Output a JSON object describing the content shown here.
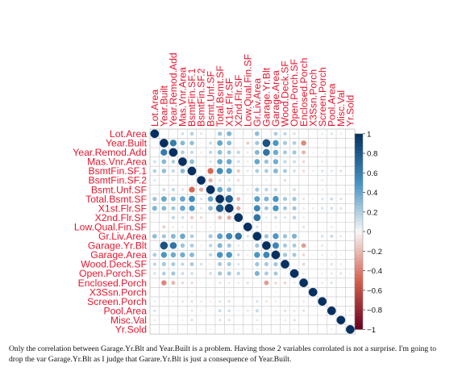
{
  "chart_data": {
    "type": "heatmap",
    "variables": [
      "Lot.Area",
      "Year.Built",
      "Year.Remod.Add",
      "Mas.Vnr.Area",
      "BsmtFin.SF.1",
      "BsmtFin.SF.2",
      "Bsmt.Unf.SF",
      "Total.Bsmt.SF",
      "X1st.Flr.SF",
      "X2nd.Flr.SF",
      "Low.Qual.Fin.SF",
      "Gr.Liv.Area",
      "Garage.Yr.Blt",
      "Garage.Area",
      "Wood.Deck.SF",
      "Open.Porch.SF",
      "Enclosed.Porch",
      "X3Ssn.Porch",
      "Screen.Porch",
      "Pool.Area",
      "Misc.Val",
      "Yr.Sold"
    ],
    "correlations": [
      [
        1.0,
        0.02,
        0.02,
        0.12,
        0.19,
        0.08,
        0.02,
        0.25,
        0.33,
        0.03,
        0.0,
        0.29,
        0.02,
        0.21,
        0.16,
        0.1,
        0.02,
        0.02,
        0.06,
        0.09,
        0.06,
        -0.02
      ],
      [
        0.02,
        1.0,
        0.61,
        0.31,
        0.28,
        -0.03,
        0.13,
        0.41,
        0.31,
        0.02,
        -0.14,
        0.24,
        0.83,
        0.48,
        0.23,
        0.2,
        -0.37,
        0.02,
        -0.04,
        0.0,
        0.0,
        -0.01
      ],
      [
        0.02,
        0.61,
        1.0,
        0.2,
        0.15,
        -0.06,
        0.16,
        0.3,
        0.24,
        0.16,
        -0.06,
        0.32,
        0.65,
        0.38,
        0.22,
        0.24,
        -0.22,
        0.04,
        -0.05,
        0.0,
        0.0,
        0.03
      ],
      [
        0.12,
        0.31,
        0.2,
        1.0,
        0.3,
        -0.02,
        0.09,
        0.4,
        0.39,
        0.12,
        -0.06,
        0.4,
        0.26,
        0.37,
        0.16,
        0.13,
        -0.11,
        0.01,
        0.07,
        0.0,
        0.04,
        -0.02
      ],
      [
        0.19,
        0.28,
        0.15,
        0.3,
        1.0,
        -0.05,
        -0.48,
        0.54,
        0.46,
        -0.16,
        -0.07,
        0.21,
        0.21,
        0.31,
        0.22,
        0.12,
        -0.1,
        0.05,
        0.09,
        0.08,
        0.09,
        0.02
      ],
      [
        0.08,
        -0.03,
        -0.06,
        -0.02,
        -0.05,
        1.0,
        -0.24,
        0.09,
        0.08,
        -0.1,
        0.0,
        -0.02,
        -0.05,
        0.0,
        0.1,
        0.0,
        0.03,
        -0.02,
        0.06,
        0.04,
        0.0,
        0.0
      ],
      [
        0.02,
        0.13,
        0.16,
        0.09,
        -0.48,
        -0.24,
        1.0,
        0.41,
        0.3,
        0.0,
        0.05,
        0.23,
        0.17,
        0.16,
        -0.04,
        0.12,
        0.0,
        0.02,
        -0.05,
        -0.03,
        -0.01,
        -0.04
      ],
      [
        0.25,
        0.41,
        0.3,
        0.4,
        0.54,
        0.09,
        0.41,
        1.0,
        0.8,
        -0.21,
        -0.03,
        0.44,
        0.33,
        0.49,
        0.23,
        0.24,
        -0.08,
        0.04,
        0.09,
        0.13,
        0.09,
        -0.01
      ],
      [
        0.33,
        0.31,
        0.24,
        0.39,
        0.46,
        0.08,
        0.3,
        0.8,
        1.0,
        -0.25,
        -0.01,
        0.56,
        0.24,
        0.49,
        0.23,
        0.24,
        -0.07,
        0.06,
        0.1,
        0.12,
        0.09,
        -0.01
      ],
      [
        0.03,
        0.02,
        0.16,
        0.12,
        -0.16,
        -0.1,
        0.0,
        -0.21,
        -0.25,
        1.0,
        0.02,
        0.66,
        0.07,
        0.13,
        0.09,
        0.18,
        0.06,
        -0.02,
        0.01,
        0.04,
        0.0,
        -0.03
      ],
      [
        0.0,
        -0.14,
        -0.06,
        -0.06,
        -0.07,
        0.0,
        0.05,
        -0.03,
        -0.01,
        0.02,
        1.0,
        0.1,
        -0.04,
        -0.05,
        -0.01,
        0.0,
        0.09,
        0.0,
        0.02,
        0.07,
        0.0,
        -0.01
      ],
      [
        0.29,
        0.24,
        0.32,
        0.4,
        0.21,
        -0.02,
        0.23,
        0.44,
        0.56,
        0.66,
        0.1,
        1.0,
        0.25,
        0.48,
        0.25,
        0.34,
        0.0,
        0.02,
        0.1,
        0.14,
        0.07,
        -0.03
      ],
      [
        0.02,
        0.83,
        0.65,
        0.26,
        0.21,
        -0.05,
        0.17,
        0.33,
        0.24,
        0.07,
        -0.04,
        0.25,
        1.0,
        0.56,
        0.23,
        0.22,
        -0.3,
        0.02,
        -0.08,
        -0.01,
        0.0,
        0.0
      ],
      [
        0.21,
        0.48,
        0.38,
        0.37,
        0.31,
        0.0,
        0.16,
        0.49,
        0.49,
        0.13,
        -0.05,
        0.48,
        0.56,
        1.0,
        0.24,
        0.23,
        -0.11,
        0.03,
        0.06,
        0.05,
        0.04,
        -0.01
      ],
      [
        0.16,
        0.23,
        0.22,
        0.16,
        0.22,
        0.1,
        -0.04,
        0.23,
        0.23,
        0.09,
        -0.01,
        0.25,
        0.23,
        0.24,
        1.0,
        0.04,
        -0.12,
        -0.01,
        -0.05,
        0.09,
        0.06,
        0.01
      ],
      [
        0.1,
        0.2,
        0.24,
        0.13,
        0.12,
        0.0,
        0.12,
        0.24,
        0.24,
        0.18,
        0.0,
        0.34,
        0.22,
        0.23,
        0.04,
        1.0,
        -0.06,
        -0.01,
        0.05,
        0.07,
        0.09,
        -0.04
      ],
      [
        0.02,
        -0.37,
        -0.22,
        -0.11,
        -0.1,
        0.03,
        0.0,
        -0.08,
        -0.07,
        0.06,
        0.09,
        0.0,
        -0.3,
        -0.11,
        -0.12,
        -0.06,
        1.0,
        -0.03,
        -0.06,
        0.09,
        0.01,
        0.0
      ],
      [
        0.02,
        0.02,
        0.04,
        0.01,
        0.05,
        -0.02,
        0.02,
        0.04,
        0.06,
        -0.02,
        0.0,
        0.02,
        0.02,
        0.03,
        -0.01,
        -0.01,
        -0.03,
        1.0,
        -0.03,
        -0.01,
        0.0,
        0.02
      ],
      [
        0.06,
        -0.04,
        -0.05,
        0.07,
        0.09,
        0.06,
        -0.05,
        0.09,
        0.1,
        0.01,
        0.02,
        0.1,
        -0.08,
        0.06,
        -0.05,
        0.05,
        -0.06,
        -0.03,
        1.0,
        0.03,
        0.01,
        0.0
      ],
      [
        0.09,
        0.0,
        0.0,
        0.0,
        0.08,
        0.04,
        -0.03,
        0.13,
        0.12,
        0.04,
        0.07,
        0.14,
        -0.01,
        0.05,
        0.09,
        0.07,
        0.09,
        -0.01,
        0.03,
        1.0,
        0.02,
        -0.05
      ],
      [
        0.06,
        0.0,
        0.0,
        0.04,
        0.09,
        0.0,
        -0.01,
        0.09,
        0.09,
        0.0,
        0.0,
        0.07,
        0.0,
        0.04,
        0.06,
        0.09,
        0.01,
        0.0,
        0.01,
        0.02,
        1.0,
        0.0
      ],
      [
        -0.02,
        -0.01,
        0.03,
        -0.02,
        0.02,
        0.0,
        -0.04,
        -0.01,
        -0.01,
        -0.03,
        -0.01,
        -0.03,
        0.0,
        -0.01,
        0.01,
        -0.04,
        0.0,
        0.02,
        0.0,
        -0.05,
        0.0,
        1.0
      ]
    ],
    "scale_ticks": [
      "1",
      "0.8",
      "0.6",
      "0.4",
      "0.2",
      "0",
      "−0.2",
      "−0.4",
      "−0.6",
      "−0.8",
      "−1"
    ],
    "scale_range": [
      -1,
      1
    ],
    "label_color": "#e6162e",
    "colors": {
      "strong_positive": "#053061",
      "positive": "#4393c3",
      "neutral": "#f7f7f7",
      "negative": "#d6604d",
      "strong_negative": "#67001f"
    },
    "grid": true
  },
  "caption": "Only the correlation between Garage.Yr.Blt and Year.Built is a problem. Having those 2 variables corrolated is not a surprise. I'm going to drop the var Garage.Yr.Blt as I judge that Garare.Yr.Blt is just a consequence of Year.Built."
}
